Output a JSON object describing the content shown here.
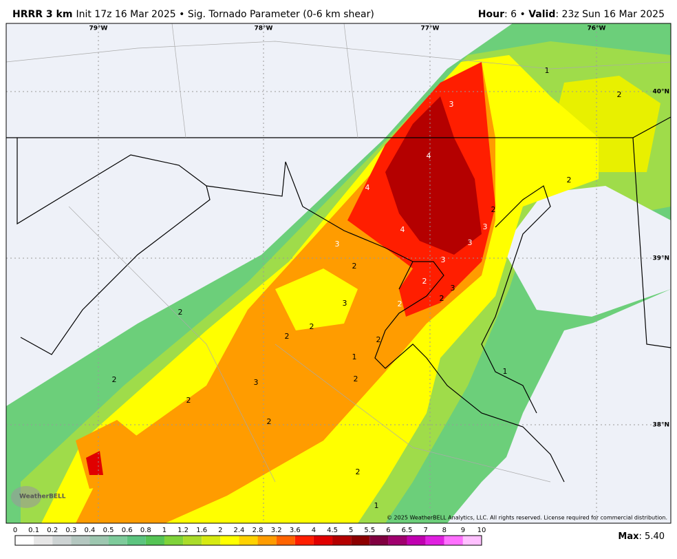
{
  "header": {
    "model": "HRRR 3 km",
    "subtitle": "Init 17z 16 Mar 2025 • Sig. Tornado Parameter (0-6 km shear)",
    "hour_label": "Hour",
    "hour_text": ": 6 • ",
    "valid_label": "Valid",
    "valid_text": ": 23z Sun 16 Mar 2025"
  },
  "map": {
    "lon_labels": [
      "79°W",
      "78°W",
      "77°W",
      "76°W"
    ],
    "lat_labels": [
      "40°N",
      "39°N",
      "38°N"
    ],
    "contour_labels": [
      "1",
      "2",
      "3",
      "4",
      "4",
      "2",
      "2",
      "4",
      "3",
      "3",
      "3",
      "2",
      "3",
      "2",
      "3",
      "2",
      "2",
      "3",
      "2",
      "2",
      "2",
      "1",
      "2",
      "3",
      "2",
      "2",
      "2",
      "1",
      "2",
      "2",
      "2",
      "1"
    ],
    "logo": "WeatherBELL",
    "copyright": "© 2025 WeatherBELL Analytics, LLC. All rights reserved. License required for commercial distribution."
  },
  "colorbar": {
    "ticks": [
      0,
      0.1,
      0.2,
      0.3,
      0.4,
      0.5,
      0.6,
      0.8,
      1,
      1.2,
      1.6,
      2,
      2.4,
      2.8,
      3.2,
      3.6,
      4,
      4.5,
      5,
      5.5,
      6,
      6.5,
      7,
      8,
      9,
      10
    ],
    "colors": [
      "#ffffff",
      "#e6e6e6",
      "#cdd3d3",
      "#b4c7c0",
      "#9dc7b0",
      "#7ecb9b",
      "#5cc47f",
      "#55c455",
      "#7fd33a",
      "#aadc2a",
      "#d6ea12",
      "#ffff00",
      "#ffd200",
      "#ff9c00",
      "#ff6400",
      "#ff1e00",
      "#e00000",
      "#b40000",
      "#8c0000",
      "#800040",
      "#a0006e",
      "#c000b0",
      "#e020e0",
      "#ff70ff",
      "#ffc0ff"
    ]
  },
  "footer": {
    "max_label": "Max",
    "max_value": ": 5.40"
  }
}
